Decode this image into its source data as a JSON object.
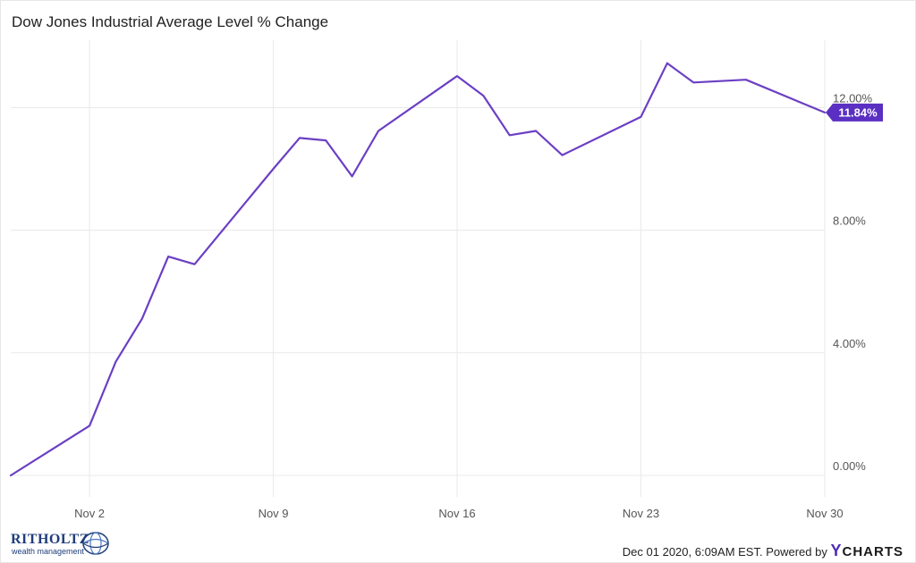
{
  "title": "Dow Jones Industrial Average Level % Change",
  "footer": {
    "timestamp": "Dec 01 2020, 6:09AM EST. Powered by",
    "brand_y": "Y",
    "brand_rest": "CHARTS"
  },
  "logo": {
    "name": "RITHOLTZ",
    "tagline": "wealth management"
  },
  "colors": {
    "line": "#6b3fc4",
    "grid": "#e9e9e9",
    "label_bg": "#5a2fc2"
  },
  "chart_data": {
    "type": "line",
    "title": "Dow Jones Industrial Average Level % Change",
    "xlabel": "",
    "ylabel": "",
    "x_ticks": [
      "Nov 2",
      "Nov 9",
      "Nov 16",
      "Nov 23",
      "Nov 30"
    ],
    "y_ticks": [
      "0.00%",
      "4.00%",
      "8.00%",
      "12.00%"
    ],
    "ylim": [
      -0.7,
      14.2
    ],
    "grid": true,
    "last_value_label": "11.84%",
    "series": [
      {
        "x": [
          "2020-10-30",
          "2020-11-02",
          "2020-11-03",
          "2020-11-04",
          "2020-11-05",
          "2020-11-06",
          "2020-11-09",
          "2020-11-10",
          "2020-11-11",
          "2020-11-12",
          "2020-11-13",
          "2020-11-16",
          "2020-11-17",
          "2020-11-18",
          "2020-11-19",
          "2020-11-20",
          "2020-11-23",
          "2020-11-24",
          "2020-11-25",
          "2020-11-27",
          "2020-11-30"
        ],
        "values": [
          0.0,
          1.62,
          3.71,
          5.11,
          7.14,
          6.89,
          10.0,
          11.01,
          10.93,
          9.76,
          11.24,
          13.03,
          12.39,
          11.1,
          11.24,
          10.45,
          11.7,
          13.45,
          12.82,
          12.91,
          11.84
        ]
      }
    ]
  }
}
